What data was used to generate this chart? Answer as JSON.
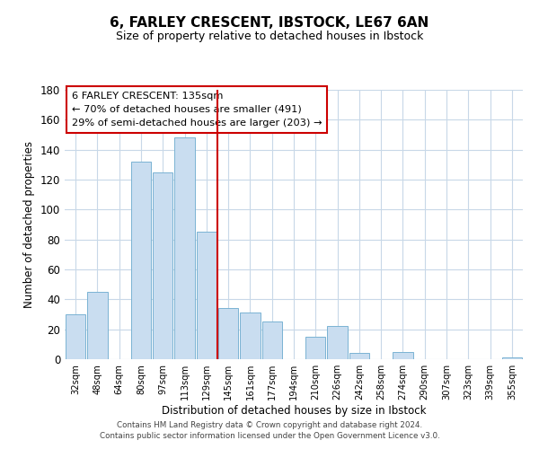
{
  "title": "6, FARLEY CRESCENT, IBSTOCK, LE67 6AN",
  "subtitle": "Size of property relative to detached houses in Ibstock",
  "xlabel": "Distribution of detached houses by size in Ibstock",
  "ylabel": "Number of detached properties",
  "bar_labels": [
    "32sqm",
    "48sqm",
    "64sqm",
    "80sqm",
    "97sqm",
    "113sqm",
    "129sqm",
    "145sqm",
    "161sqm",
    "177sqm",
    "194sqm",
    "210sqm",
    "226sqm",
    "242sqm",
    "258sqm",
    "274sqm",
    "290sqm",
    "307sqm",
    "323sqm",
    "339sqm",
    "355sqm"
  ],
  "bar_values": [
    30,
    45,
    0,
    132,
    125,
    148,
    85,
    34,
    31,
    25,
    0,
    15,
    22,
    4,
    0,
    5,
    0,
    0,
    0,
    0,
    1
  ],
  "bar_color": "#c9ddf0",
  "bar_edge_color": "#7ab3d3",
  "vline_x": 6.5,
  "vline_color": "#cc0000",
  "ylim": [
    0,
    180
  ],
  "yticks": [
    0,
    20,
    40,
    60,
    80,
    100,
    120,
    140,
    160,
    180
  ],
  "annotation_title": "6 FARLEY CRESCENT: 135sqm",
  "annotation_line1": "← 70% of detached houses are smaller (491)",
  "annotation_line2": "29% of semi-detached houses are larger (203) →",
  "annotation_box_color": "#ffffff",
  "annotation_box_edge": "#cc0000",
  "footer1": "Contains HM Land Registry data © Crown copyright and database right 2024.",
  "footer2": "Contains public sector information licensed under the Open Government Licence v3.0.",
  "background_color": "#ffffff",
  "grid_color": "#c8d8e8"
}
